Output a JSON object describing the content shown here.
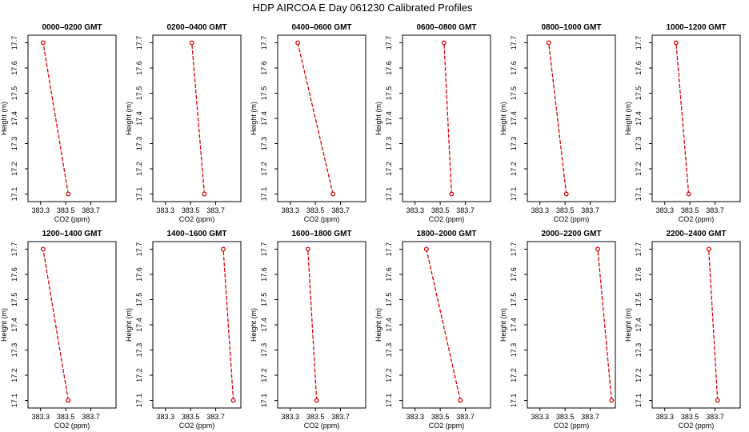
{
  "title": "HDP  AIRCOA E  Day 061230  Calibrated Profiles",
  "chart_data": {
    "type": "line",
    "xlabel": "CO2 (ppm)",
    "ylabel": "Height (m)",
    "xlim": [
      383.2,
      383.9
    ],
    "ylim": [
      17.07,
      17.73
    ],
    "xticks": [
      383.3,
      383.5,
      383.7
    ],
    "xtick_labels": [
      "383.3",
      "383.5",
      "383.7"
    ],
    "yticks": [
      17.1,
      17.2,
      17.3,
      17.4,
      17.5,
      17.6,
      17.7
    ],
    "ytick_labels": [
      "17.1",
      "17.2",
      "17.3",
      "17.4",
      "17.5",
      "17.6",
      "17.7"
    ],
    "series_color": "#dd0000",
    "panels": [
      {
        "title": "0000–0200 GMT",
        "x": [
          383.52,
          383.32
        ],
        "y": [
          17.1,
          17.7
        ]
      },
      {
        "title": "0200–0400 GMT",
        "x": [
          383.61,
          383.51
        ],
        "y": [
          17.1,
          17.7
        ]
      },
      {
        "title": "0400–0600 GMT",
        "x": [
          383.64,
          383.36
        ],
        "y": [
          17.1,
          17.7
        ]
      },
      {
        "title": "0600–0800 GMT",
        "x": [
          383.59,
          383.53
        ],
        "y": [
          17.1,
          17.7
        ]
      },
      {
        "title": "0800–1000 GMT",
        "x": [
          383.51,
          383.37
        ],
        "y": [
          17.1,
          17.7
        ]
      },
      {
        "title": "1000–1200 GMT",
        "x": [
          383.49,
          383.39
        ],
        "y": [
          17.1,
          17.7
        ]
      },
      {
        "title": "1200–1400 GMT",
        "x": [
          383.52,
          383.32
        ],
        "y": [
          17.1,
          17.7
        ]
      },
      {
        "title": "1400–1600 GMT",
        "x": [
          383.84,
          383.76
        ],
        "y": [
          17.1,
          17.7
        ]
      },
      {
        "title": "1600–1800 GMT",
        "x": [
          383.51,
          383.44
        ],
        "y": [
          17.1,
          17.7
        ]
      },
      {
        "title": "1800–2000 GMT",
        "x": [
          383.66,
          383.39
        ],
        "y": [
          17.1,
          17.7
        ]
      },
      {
        "title": "2000–2200 GMT",
        "x": [
          383.87,
          383.76
        ],
        "y": [
          17.1,
          17.7
        ]
      },
      {
        "title": "2200–2400 GMT",
        "x": [
          383.72,
          383.65
        ],
        "y": [
          17.1,
          17.7
        ]
      }
    ]
  }
}
